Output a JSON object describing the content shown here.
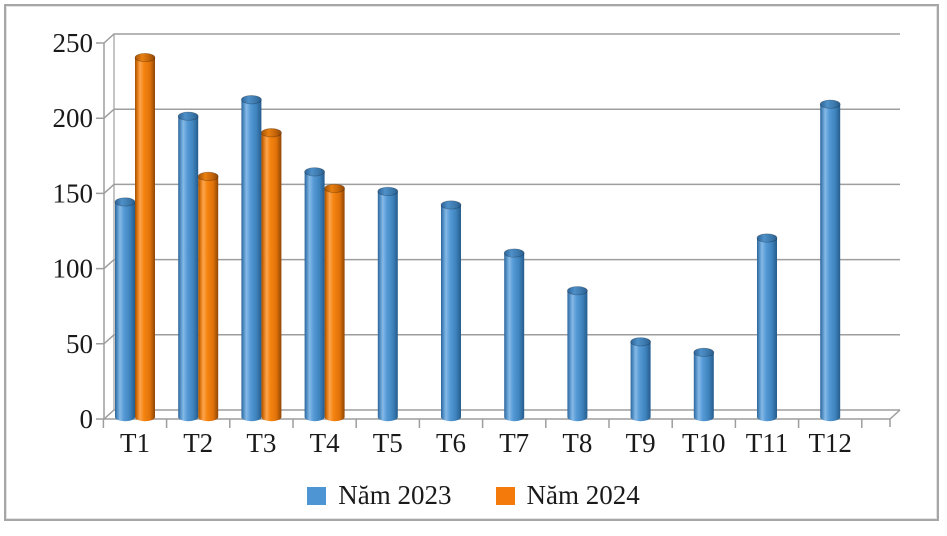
{
  "chart_data": {
    "type": "bar",
    "bar_style": "cylinder-3d",
    "title": "",
    "xlabel": "",
    "ylabel": "",
    "categories": [
      "T1",
      "T2",
      "T3",
      "T4",
      "T5",
      "T6",
      "T7",
      "T8",
      "T9",
      "T10",
      "T11",
      "T12"
    ],
    "series": [
      {
        "name": "Năm 2023",
        "color": "#4E96D3",
        "values": [
          143,
          200,
          211,
          163,
          150,
          141,
          109,
          84,
          50,
          43,
          119,
          208
        ]
      },
      {
        "name": "Năm 2024",
        "color": "#F47B0B",
        "values": [
          239,
          160,
          189,
          152,
          null,
          null,
          null,
          null,
          null,
          null,
          null,
          null
        ]
      }
    ],
    "ylim": [
      0,
      250
    ],
    "yticks": [
      0,
      50,
      100,
      150,
      200,
      250
    ],
    "grid": "horizontal",
    "gridline_color": "#9e9e9e",
    "text_color": "#1a1a1a",
    "legend_position": "bottom"
  }
}
